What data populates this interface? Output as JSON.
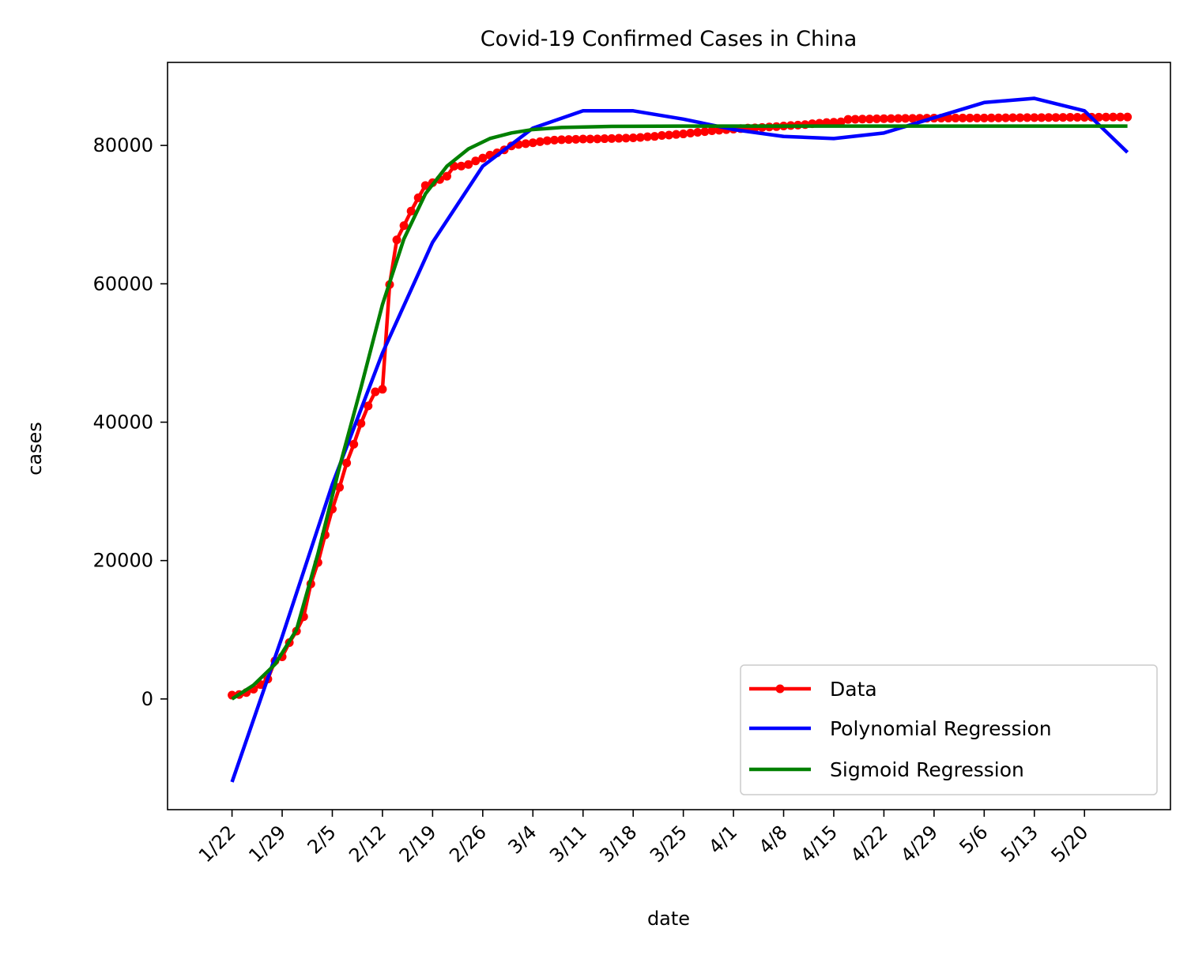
{
  "chart_data": {
    "type": "line",
    "title": "Covid-19 Confirmed Cases in China",
    "xlabel": "date",
    "ylabel": "cases",
    "x_tick_labels": [
      "1/22",
      "1/29",
      "2/5",
      "2/12",
      "2/19",
      "2/26",
      "3/4",
      "3/11",
      "3/18",
      "3/25",
      "4/1",
      "4/8",
      "4/15",
      "4/22",
      "4/29",
      "5/6",
      "5/13",
      "5/20"
    ],
    "y_ticks": [
      0,
      20000,
      40000,
      60000,
      80000
    ],
    "xlim": [
      "1/13",
      "6/1"
    ],
    "ylim": [
      -16000,
      92000
    ],
    "grid": false,
    "legend_position": "lower-right",
    "series": [
      {
        "name": "Data",
        "color": "#ff0000",
        "marker": "circle",
        "x": [
          "1/22",
          "1/23",
          "1/24",
          "1/25",
          "1/26",
          "1/27",
          "1/28",
          "1/29",
          "1/30",
          "1/31",
          "2/1",
          "2/2",
          "2/3",
          "2/4",
          "2/5",
          "2/6",
          "2/7",
          "2/8",
          "2/9",
          "2/10",
          "2/11",
          "2/12",
          "2/13",
          "2/14",
          "2/15",
          "2/16",
          "2/17",
          "2/18",
          "2/19",
          "2/20",
          "2/21",
          "2/22",
          "2/23",
          "2/24",
          "2/25",
          "2/26",
          "2/27",
          "2/28",
          "2/29",
          "3/1",
          "3/2",
          "3/3",
          "3/4",
          "3/5",
          "3/6",
          "3/7",
          "3/8",
          "3/9",
          "3/10",
          "3/11",
          "3/12",
          "3/13",
          "3/14",
          "3/15",
          "3/16",
          "3/17",
          "3/18",
          "3/19",
          "3/20",
          "3/21",
          "3/22",
          "3/23",
          "3/24",
          "3/25",
          "3/26",
          "3/27",
          "3/28",
          "3/29",
          "3/30",
          "3/31",
          "4/1",
          "4/2",
          "4/3",
          "4/4",
          "4/5",
          "4/6",
          "4/7",
          "4/8",
          "4/9",
          "4/10",
          "4/11",
          "4/12",
          "4/13",
          "4/14",
          "4/15",
          "4/16",
          "4/17",
          "4/18",
          "4/19",
          "4/20",
          "4/21",
          "4/22",
          "4/23",
          "4/24",
          "4/25",
          "4/26",
          "4/27",
          "4/28",
          "4/29",
          "4/30",
          "5/1",
          "5/2",
          "5/3",
          "5/4",
          "5/5",
          "5/6",
          "5/7",
          "5/8",
          "5/9",
          "5/10",
          "5/11",
          "5/12",
          "5/13",
          "5/14",
          "5/15",
          "5/16",
          "5/17",
          "5/18",
          "5/19",
          "5/20",
          "5/21",
          "5/22",
          "5/23",
          "5/24",
          "5/25",
          "5/26"
        ],
        "y": [
          548,
          643,
          920,
          1406,
          2075,
          2877,
          5509,
          6087,
          8141,
          9802,
          11891,
          16630,
          19716,
          23707,
          27440,
          30587,
          34110,
          36814,
          39829,
          42354,
          44386,
          44759,
          59895,
          66358,
          68413,
          70513,
          72434,
          74211,
          74619,
          75077,
          75550,
          77001,
          77022,
          77241,
          77754,
          78166,
          78600,
          78928,
          79356,
          79932,
          80136,
          80261,
          80386,
          80537,
          80690,
          80770,
          80823,
          80860,
          80887,
          80921,
          80932,
          80945,
          80977,
          81003,
          81033,
          81058,
          81102,
          81156,
          81250,
          81305,
          81435,
          81498,
          81591,
          81661,
          81782,
          81897,
          81999,
          82122,
          82198,
          82279,
          82361,
          82432,
          82511,
          82543,
          82602,
          82665,
          82718,
          82809,
          82883,
          82941,
          83014,
          83134,
          83213,
          83306,
          83356,
          83403,
          83760,
          83787,
          83805,
          83817,
          83853,
          83868,
          83884,
          83899,
          83909,
          83912,
          83918,
          83940,
          83944,
          83956,
          83959,
          83959,
          83964,
          83966,
          83968,
          83970,
          83975,
          83976,
          83990,
          84010,
          84011,
          84018,
          84024,
          84029,
          84038,
          84044,
          84054,
          84063,
          84063,
          84063,
          84081,
          84084,
          84095,
          84102,
          84103,
          84106
        ]
      },
      {
        "name": "Polynomial Regression",
        "color": "#0000ff",
        "x": [
          "1/22",
          "1/29",
          "2/5",
          "2/12",
          "2/19",
          "2/26",
          "3/4",
          "3/11",
          "3/18",
          "3/25",
          "4/1",
          "4/8",
          "4/15",
          "4/22",
          "4/29",
          "5/6",
          "5/13",
          "5/20",
          "5/26"
        ],
        "y": [
          -12000,
          9000,
          31000,
          50000,
          66000,
          77000,
          82500,
          85000,
          85000,
          83800,
          82300,
          81300,
          81000,
          81800,
          84000,
          86200,
          86800,
          85000,
          79000
        ]
      },
      {
        "name": "Sigmoid Regression",
        "color": "#008000",
        "x": [
          "1/22",
          "1/25",
          "1/28",
          "1/31",
          "2/3",
          "2/6",
          "2/9",
          "2/12",
          "2/15",
          "2/18",
          "2/21",
          "2/24",
          "2/27",
          "3/1",
          "3/4",
          "3/8",
          "3/15",
          "3/25",
          "4/15",
          "5/26"
        ],
        "y": [
          0,
          2000,
          5000,
          10000,
          21000,
          33500,
          45000,
          57000,
          66500,
          73000,
          77000,
          79500,
          81000,
          81800,
          82300,
          82600,
          82750,
          82800,
          82800,
          82800
        ]
      }
    ]
  }
}
